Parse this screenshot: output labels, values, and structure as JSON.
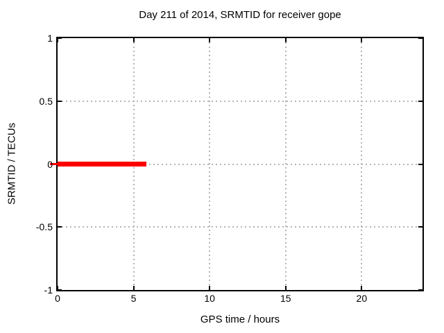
{
  "chart_data": {
    "type": "line",
    "title": "Day 211 of 2014, SRMTID for receiver gope",
    "xlabel": "GPS time / hours",
    "ylabel": "SRMTID / TECUs",
    "xlim": [
      0,
      24
    ],
    "ylim": [
      -1,
      1
    ],
    "xticks": [
      {
        "v": 0,
        "label": "0"
      },
      {
        "v": 5,
        "label": "5"
      },
      {
        "v": 10,
        "label": "10"
      },
      {
        "v": 15,
        "label": "15"
      },
      {
        "v": 20,
        "label": "20"
      }
    ],
    "yticks": [
      {
        "v": -1,
        "label": "-1"
      },
      {
        "v": -0.5,
        "label": "-0.5"
      },
      {
        "v": 0,
        "label": "0"
      },
      {
        "v": 0.5,
        "label": "0.5"
      },
      {
        "v": 1,
        "label": "1"
      }
    ],
    "grid": true,
    "grid_style": "dotted",
    "grid_color": "#b4b4b4",
    "border_color": "#000000",
    "background": "#ffffff",
    "legend": "none",
    "series": [
      {
        "name": "SRMTID",
        "color": "#ff0000",
        "segments": [
          {
            "y": 0,
            "x_start": -0.5,
            "x_end": 0.1,
            "thickness_px": 3
          },
          {
            "y": 0,
            "x_start": 0,
            "x_end": 5.84,
            "thickness_px": 7
          }
        ]
      }
    ]
  }
}
